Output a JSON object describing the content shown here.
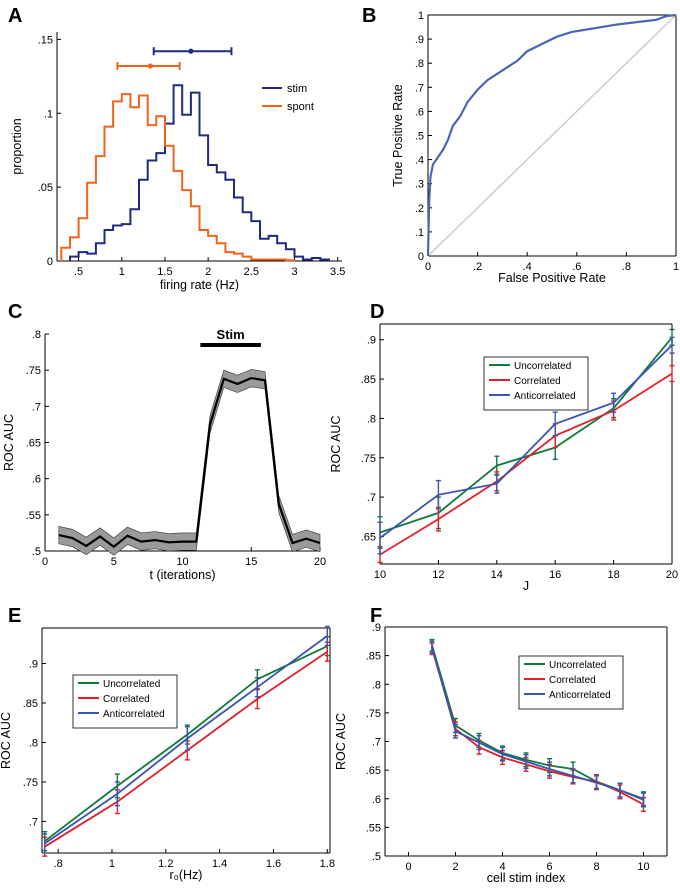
{
  "chart_data": [
    {
      "panel": "A",
      "type": "histogram",
      "xlabel": "firing rate (Hz)",
      "ylabel": "proportion",
      "xlim": [
        0.25,
        3.55
      ],
      "ylim": [
        0,
        0.155
      ],
      "xticks": [
        0.5,
        1,
        1.5,
        2,
        2.5,
        3,
        3.5
      ],
      "yticks": [
        0,
        0.05,
        0.1,
        0.15
      ],
      "legend_position": "right",
      "series": [
        {
          "name": "stim",
          "color": "#1f2a80",
          "bin_edges": [
            0.4,
            0.5,
            0.6,
            0.7,
            0.8,
            0.9,
            1.0,
            1.1,
            1.2,
            1.3,
            1.4,
            1.5,
            1.6,
            1.7,
            1.8,
            1.9,
            2.0,
            2.1,
            2.2,
            2.3,
            2.4,
            2.5,
            2.6,
            2.7,
            2.8,
            2.9,
            3.0,
            3.1,
            3.2,
            3.3,
            3.4
          ],
          "values": [
            0.003,
            0.006,
            0.005,
            0.012,
            0.021,
            0.024,
            0.025,
            0.035,
            0.055,
            0.068,
            0.073,
            0.093,
            0.119,
            0.099,
            0.114,
            0.085,
            0.065,
            0.06,
            0.055,
            0.043,
            0.033,
            0.027,
            0.015,
            0.017,
            0.012,
            0.008,
            0.003,
            0.001,
            0.002,
            0.001
          ]
        },
        {
          "name": "spont",
          "color": "#f0641e",
          "bin_edges": [
            0.3,
            0.4,
            0.5,
            0.6,
            0.7,
            0.8,
            0.9,
            1.0,
            1.1,
            1.2,
            1.3,
            1.4,
            1.5,
            1.6,
            1.7,
            1.8,
            1.9,
            2.0,
            2.1,
            2.2,
            2.3,
            2.4,
            2.5,
            2.6,
            2.7,
            2.8,
            2.9,
            3.0
          ],
          "values": [
            0.009,
            0.016,
            0.029,
            0.053,
            0.071,
            0.091,
            0.108,
            0.113,
            0.104,
            0.112,
            0.092,
            0.098,
            0.078,
            0.061,
            0.048,
            0.037,
            0.021,
            0.017,
            0.012,
            0.006,
            0.005,
            0.003,
            0.001,
            0.001,
            0.001,
            0.001,
            0.0005
          ]
        }
      ],
      "error_bars": [
        {
          "name": "stim",
          "mean": 1.8,
          "low": 1.37,
          "high": 2.27,
          "y": 0.142
        },
        {
          "name": "spont",
          "mean": 1.33,
          "low": 0.95,
          "high": 1.67,
          "y": 0.132
        }
      ]
    },
    {
      "panel": "B",
      "type": "line",
      "xlabel": "False Positive Rate",
      "ylabel": "True Positive Rate",
      "xlim": [
        0,
        1
      ],
      "ylim": [
        0,
        1
      ],
      "xticks": [
        0,
        0.2,
        0.4,
        0.6,
        0.8,
        1
      ],
      "yticks": [
        0,
        0.1,
        0.2,
        0.3,
        0.4,
        0.5,
        0.6,
        0.7,
        0.8,
        0.9,
        1
      ],
      "series": [
        {
          "name": "ROC",
          "color": "#4a66b3",
          "x": [
            0,
            0.005,
            0.01,
            0.02,
            0.04,
            0.06,
            0.08,
            0.1,
            0.13,
            0.16,
            0.2,
            0.24,
            0.3,
            0.36,
            0.4,
            0.46,
            0.52,
            0.58,
            0.64,
            0.7,
            0.76,
            0.8,
            0.84,
            0.88,
            0.92,
            0.96,
            1
          ],
          "y": [
            0,
            0.23,
            0.33,
            0.38,
            0.41,
            0.44,
            0.48,
            0.54,
            0.58,
            0.64,
            0.69,
            0.73,
            0.77,
            0.81,
            0.85,
            0.88,
            0.91,
            0.93,
            0.94,
            0.95,
            0.96,
            0.965,
            0.97,
            0.975,
            0.98,
            0.995,
            1
          ]
        },
        {
          "name": "chance",
          "color": "#cccccc",
          "x": [
            0,
            1
          ],
          "y": [
            0,
            1
          ]
        }
      ]
    },
    {
      "panel": "C",
      "type": "line",
      "xlabel": "t (iterations)",
      "ylabel": "ROC AUC",
      "annotation": "Stim",
      "stim_range": [
        11.3,
        15.7
      ],
      "xlim": [
        0,
        20
      ],
      "ylim": [
        0.5,
        0.8
      ],
      "xticks": [
        0,
        5,
        10,
        15,
        20
      ],
      "yticks": [
        0.5,
        0.55,
        0.6,
        0.65,
        0.7,
        0.75,
        0.8
      ],
      "series": [
        {
          "name": "mean",
          "color": "#000000",
          "x": [
            1,
            2,
            3,
            4,
            5,
            6,
            7,
            8,
            9,
            10,
            11,
            12,
            13,
            14,
            15,
            16,
            17,
            18,
            19,
            20
          ],
          "y": [
            0.522,
            0.518,
            0.507,
            0.52,
            0.506,
            0.521,
            0.513,
            0.515,
            0.512,
            0.513,
            0.513,
            0.675,
            0.738,
            0.731,
            0.739,
            0.736,
            0.565,
            0.511,
            0.517,
            0.511
          ],
          "error": [
            0.012,
            0.012,
            0.012,
            0.012,
            0.012,
            0.012,
            0.012,
            0.012,
            0.012,
            0.012,
            0.012,
            0.012,
            0.012,
            0.012,
            0.012,
            0.012,
            0.012,
            0.012,
            0.012,
            0.012
          ]
        }
      ]
    },
    {
      "panel": "D",
      "type": "line",
      "xlabel": "J",
      "ylabel": "ROC AUC",
      "xlim": [
        10,
        20
      ],
      "ylim": [
        0.615,
        0.92
      ],
      "xticks": [
        10,
        12,
        14,
        16,
        18,
        20
      ],
      "yticks": [
        0.65,
        0.7,
        0.75,
        0.8,
        0.85,
        0.9
      ],
      "legend_position": "top-center",
      "series": [
        {
          "name": "Uncorrelated",
          "color": "#0f7a3a",
          "x": [
            10,
            12,
            14,
            16,
            18,
            20
          ],
          "y": [
            0.655,
            0.68,
            0.74,
            0.763,
            0.813,
            0.903
          ],
          "error": [
            0.02,
            0.02,
            0.012,
            0.015,
            0.012,
            0.01
          ]
        },
        {
          "name": "Correlated",
          "color": "#e0202a",
          "x": [
            10,
            12,
            14,
            16,
            18,
            20
          ],
          "y": [
            0.627,
            0.672,
            0.72,
            0.778,
            0.81,
            0.857
          ],
          "error": [
            0.01,
            0.015,
            0.012,
            0.015,
            0.012,
            0.01
          ]
        },
        {
          "name": "Anticorrelated",
          "color": "#3a55b0",
          "x": [
            10,
            12,
            14,
            16,
            18,
            20
          ],
          "y": [
            0.648,
            0.703,
            0.717,
            0.793,
            0.82,
            0.893
          ],
          "error": [
            0.02,
            0.018,
            0.012,
            0.015,
            0.012,
            0.01
          ]
        }
      ]
    },
    {
      "panel": "E",
      "type": "line",
      "xlabel": "r₀(Hz)",
      "ylabel": "ROC AUC",
      "xlim": [
        0.74,
        1.81
      ],
      "ylim": [
        0.66,
        0.945
      ],
      "xticks": [
        0.8,
        1,
        1.2,
        1.4,
        1.6,
        1.8
      ],
      "yticks": [
        0.7,
        0.75,
        0.8,
        0.85,
        0.9
      ],
      "legend_position": "top-left",
      "series": [
        {
          "name": "Uncorrelated",
          "color": "#0f7a3a",
          "x": [
            0.75,
            1.02,
            1.28,
            1.54,
            1.8
          ],
          "y": [
            0.675,
            0.745,
            0.81,
            0.88,
            0.922
          ],
          "error": [
            0.012,
            0.015,
            0.012,
            0.012,
            0.012
          ]
        },
        {
          "name": "Correlated",
          "color": "#e0202a",
          "x": [
            0.75,
            1.02,
            1.28,
            1.54,
            1.8
          ],
          "y": [
            0.668,
            0.725,
            0.79,
            0.855,
            0.915
          ],
          "error": [
            0.012,
            0.015,
            0.012,
            0.012,
            0.012
          ]
        },
        {
          "name": "Anticorrelated",
          "color": "#3a55b0",
          "x": [
            0.75,
            1.02,
            1.28,
            1.54,
            1.8
          ],
          "y": [
            0.672,
            0.735,
            0.805,
            0.87,
            0.935
          ],
          "error": [
            0.012,
            0.015,
            0.015,
            0.012,
            0.012
          ]
        }
      ]
    },
    {
      "panel": "F",
      "type": "line",
      "xlabel": "cell stim index",
      "ylabel": "ROC AUC",
      "xlim": [
        -1,
        11
      ],
      "ylim": [
        0.5,
        0.9
      ],
      "xticks": [
        0,
        2,
        4,
        6,
        8,
        10
      ],
      "yticks": [
        0.5,
        0.55,
        0.6,
        0.65,
        0.7,
        0.75,
        0.8,
        0.85,
        0.9
      ],
      "legend_position": "top-center",
      "series": [
        {
          "name": "Uncorrelated",
          "color": "#0f7a3a",
          "x": [
            1,
            2,
            3,
            4,
            5,
            6,
            7,
            8,
            9,
            10
          ],
          "y": [
            0.868,
            0.728,
            0.702,
            0.68,
            0.668,
            0.658,
            0.652,
            0.63,
            0.615,
            0.6
          ],
          "error": [
            0.01,
            0.012,
            0.012,
            0.012,
            0.012,
            0.012,
            0.012,
            0.012,
            0.012,
            0.012
          ]
        },
        {
          "name": "Correlated",
          "color": "#e0202a",
          "x": [
            1,
            2,
            3,
            4,
            5,
            6,
            7,
            8,
            9,
            10
          ],
          "y": [
            0.862,
            0.722,
            0.69,
            0.672,
            0.66,
            0.648,
            0.638,
            0.63,
            0.612,
            0.59
          ],
          "error": [
            0.01,
            0.012,
            0.012,
            0.012,
            0.012,
            0.012,
            0.012,
            0.012,
            0.012,
            0.012
          ]
        },
        {
          "name": "Anticorrelated",
          "color": "#3a55b0",
          "x": [
            1,
            2,
            3,
            4,
            5,
            6,
            7,
            8,
            9,
            10
          ],
          "y": [
            0.865,
            0.718,
            0.698,
            0.678,
            0.665,
            0.652,
            0.64,
            0.628,
            0.615,
            0.598
          ],
          "error": [
            0.01,
            0.012,
            0.012,
            0.012,
            0.012,
            0.012,
            0.012,
            0.012,
            0.012,
            0.012
          ]
        }
      ]
    }
  ]
}
